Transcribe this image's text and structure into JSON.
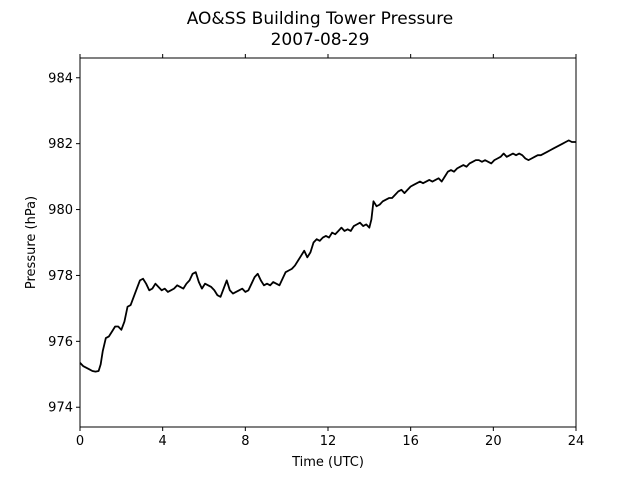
{
  "chart_data": {
    "type": "line",
    "title": "AO&SS Building Tower Pressure",
    "subtitle": "2007-08-29",
    "xlabel": "Time (UTC)",
    "ylabel": "Pressure (hPa)",
    "xlim": [
      0,
      24
    ],
    "ylim": [
      973.4,
      984.6
    ],
    "xticks": [
      0,
      4,
      8,
      12,
      16,
      20,
      24
    ],
    "yticks": [
      974,
      976,
      978,
      980,
      982,
      984
    ],
    "grid": false,
    "series": [
      {
        "color": "#000000",
        "points": [
          [
            0.0,
            975.35
          ],
          [
            0.15,
            975.25
          ],
          [
            0.3,
            975.2
          ],
          [
            0.45,
            975.15
          ],
          [
            0.6,
            975.1
          ],
          [
            0.75,
            975.08
          ],
          [
            0.9,
            975.1
          ],
          [
            1.0,
            975.3
          ],
          [
            1.1,
            975.7
          ],
          [
            1.25,
            976.1
          ],
          [
            1.4,
            976.15
          ],
          [
            1.55,
            976.3
          ],
          [
            1.7,
            976.45
          ],
          [
            1.85,
            976.45
          ],
          [
            2.0,
            976.35
          ],
          [
            2.15,
            976.6
          ],
          [
            2.3,
            977.05
          ],
          [
            2.45,
            977.1
          ],
          [
            2.6,
            977.35
          ],
          [
            2.75,
            977.6
          ],
          [
            2.9,
            977.85
          ],
          [
            3.05,
            977.9
          ],
          [
            3.2,
            977.75
          ],
          [
            3.35,
            977.55
          ],
          [
            3.5,
            977.6
          ],
          [
            3.65,
            977.75
          ],
          [
            3.8,
            977.65
          ],
          [
            3.95,
            977.55
          ],
          [
            4.1,
            977.6
          ],
          [
            4.25,
            977.5
          ],
          [
            4.4,
            977.55
          ],
          [
            4.55,
            977.6
          ],
          [
            4.7,
            977.7
          ],
          [
            4.85,
            977.65
          ],
          [
            5.0,
            977.6
          ],
          [
            5.15,
            977.75
          ],
          [
            5.3,
            977.85
          ],
          [
            5.45,
            978.05
          ],
          [
            5.6,
            978.1
          ],
          [
            5.75,
            977.8
          ],
          [
            5.9,
            977.6
          ],
          [
            6.05,
            977.75
          ],
          [
            6.2,
            977.7
          ],
          [
            6.35,
            977.65
          ],
          [
            6.5,
            977.55
          ],
          [
            6.65,
            977.4
          ],
          [
            6.8,
            977.35
          ],
          [
            6.95,
            977.6
          ],
          [
            7.1,
            977.85
          ],
          [
            7.25,
            977.55
          ],
          [
            7.4,
            977.45
          ],
          [
            7.55,
            977.5
          ],
          [
            7.7,
            977.55
          ],
          [
            7.85,
            977.6
          ],
          [
            8.0,
            977.5
          ],
          [
            8.15,
            977.55
          ],
          [
            8.3,
            977.75
          ],
          [
            8.45,
            977.95
          ],
          [
            8.6,
            978.05
          ],
          [
            8.75,
            977.85
          ],
          [
            8.9,
            977.7
          ],
          [
            9.05,
            977.75
          ],
          [
            9.2,
            977.7
          ],
          [
            9.35,
            977.8
          ],
          [
            9.5,
            977.75
          ],
          [
            9.65,
            977.7
          ],
          [
            9.8,
            977.9
          ],
          [
            9.95,
            978.1
          ],
          [
            10.1,
            978.15
          ],
          [
            10.25,
            978.2
          ],
          [
            10.4,
            978.3
          ],
          [
            10.55,
            978.45
          ],
          [
            10.7,
            978.6
          ],
          [
            10.85,
            978.75
          ],
          [
            11.0,
            978.55
          ],
          [
            11.15,
            978.7
          ],
          [
            11.3,
            979.0
          ],
          [
            11.45,
            979.1
          ],
          [
            11.6,
            979.05
          ],
          [
            11.75,
            979.15
          ],
          [
            11.9,
            979.2
          ],
          [
            12.05,
            979.15
          ],
          [
            12.2,
            979.3
          ],
          [
            12.35,
            979.25
          ],
          [
            12.5,
            979.35
          ],
          [
            12.65,
            979.45
          ],
          [
            12.8,
            979.35
          ],
          [
            12.95,
            979.4
          ],
          [
            13.1,
            979.35
          ],
          [
            13.25,
            979.5
          ],
          [
            13.4,
            979.55
          ],
          [
            13.55,
            979.6
          ],
          [
            13.7,
            979.5
          ],
          [
            13.85,
            979.55
          ],
          [
            14.0,
            979.45
          ],
          [
            14.1,
            979.7
          ],
          [
            14.2,
            980.25
          ],
          [
            14.35,
            980.1
          ],
          [
            14.5,
            980.15
          ],
          [
            14.65,
            980.25
          ],
          [
            14.8,
            980.3
          ],
          [
            14.95,
            980.35
          ],
          [
            15.1,
            980.35
          ],
          [
            15.25,
            980.45
          ],
          [
            15.4,
            980.55
          ],
          [
            15.55,
            980.6
          ],
          [
            15.7,
            980.5
          ],
          [
            15.85,
            980.6
          ],
          [
            16.0,
            980.7
          ],
          [
            16.15,
            980.75
          ],
          [
            16.3,
            980.8
          ],
          [
            16.45,
            980.85
          ],
          [
            16.6,
            980.8
          ],
          [
            16.75,
            980.85
          ],
          [
            16.9,
            980.9
          ],
          [
            17.05,
            980.85
          ],
          [
            17.2,
            980.9
          ],
          [
            17.35,
            980.95
          ],
          [
            17.5,
            980.85
          ],
          [
            17.65,
            981.0
          ],
          [
            17.8,
            981.15
          ],
          [
            17.95,
            981.2
          ],
          [
            18.1,
            981.15
          ],
          [
            18.25,
            981.25
          ],
          [
            18.4,
            981.3
          ],
          [
            18.55,
            981.35
          ],
          [
            18.7,
            981.3
          ],
          [
            18.85,
            981.4
          ],
          [
            19.0,
            981.45
          ],
          [
            19.15,
            981.5
          ],
          [
            19.3,
            981.5
          ],
          [
            19.45,
            981.45
          ],
          [
            19.6,
            981.5
          ],
          [
            19.75,
            981.45
          ],
          [
            19.9,
            981.4
          ],
          [
            20.05,
            981.5
          ],
          [
            20.2,
            981.55
          ],
          [
            20.35,
            981.6
          ],
          [
            20.5,
            981.7
          ],
          [
            20.65,
            981.6
          ],
          [
            20.8,
            981.65
          ],
          [
            20.95,
            981.7
          ],
          [
            21.1,
            981.65
          ],
          [
            21.25,
            981.7
          ],
          [
            21.4,
            981.65
          ],
          [
            21.55,
            981.55
          ],
          [
            21.7,
            981.5
          ],
          [
            21.85,
            981.55
          ],
          [
            22.0,
            981.6
          ],
          [
            22.15,
            981.65
          ],
          [
            22.3,
            981.65
          ],
          [
            22.45,
            981.7
          ],
          [
            22.6,
            981.75
          ],
          [
            22.75,
            981.8
          ],
          [
            22.9,
            981.85
          ],
          [
            23.05,
            981.9
          ],
          [
            23.2,
            981.95
          ],
          [
            23.35,
            982.0
          ],
          [
            23.5,
            982.05
          ],
          [
            23.65,
            982.1
          ],
          [
            23.8,
            982.05
          ],
          [
            24.0,
            982.05
          ]
        ]
      }
    ]
  }
}
